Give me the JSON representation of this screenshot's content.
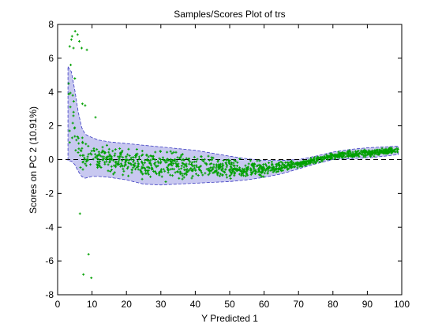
{
  "chart_data": {
    "type": "scatter",
    "title": "Samples/Scores Plot of trs",
    "xlabel": "Y Predicted 1",
    "ylabel": "Scores on PC 2 (10.91%)",
    "xlim": [
      0,
      100
    ],
    "ylim": [
      -8,
      8
    ],
    "xticks": [
      "0",
      "10",
      "20",
      "30",
      "40",
      "50",
      "60",
      "70",
      "80",
      "90",
      "100"
    ],
    "yticks": [
      "-8",
      "-6",
      "-4",
      "-2",
      "0",
      "2",
      "4",
      "6",
      "8"
    ],
    "grid": false,
    "zero_line": {
      "y": 0,
      "style": "dashed"
    },
    "colors": {
      "points": "#00a000",
      "band_fill": "#c8c8f0",
      "band_edge": "#3a3ac0",
      "zero_line": "#000000"
    },
    "confidence_band": {
      "x": [
        3,
        4,
        5,
        6,
        7,
        8,
        10,
        12,
        15,
        20,
        25,
        30,
        35,
        40,
        45,
        50,
        55,
        60,
        65,
        70,
        75,
        80,
        85,
        90,
        95,
        99
      ],
      "upper": [
        5.5,
        5.2,
        4.1,
        2.8,
        1.9,
        1.5,
        1.3,
        1.15,
        1.05,
        0.95,
        0.85,
        0.75,
        0.65,
        0.55,
        0.38,
        0.2,
        0.05,
        -0.05,
        -0.05,
        0.0,
        0.2,
        0.45,
        0.6,
        0.7,
        0.75,
        0.8
      ],
      "lower": [
        -0.05,
        -0.1,
        -0.3,
        -0.7,
        -1.0,
        -1.1,
        -1.0,
        -1.0,
        -1.05,
        -1.2,
        -1.45,
        -1.5,
        -1.45,
        -1.4,
        -1.35,
        -1.3,
        -1.2,
        -1.05,
        -0.85,
        -0.55,
        -0.25,
        0.0,
        0.05,
        0.1,
        0.2,
        0.3
      ]
    },
    "outlier_points": [
      [
        3.5,
        6.7
      ],
      [
        4.0,
        7.1
      ],
      [
        4.2,
        7.3
      ],
      [
        4.6,
        6.6
      ],
      [
        5.1,
        7.6
      ],
      [
        5.8,
        7.4
      ],
      [
        6.3,
        7.0
      ],
      [
        7.0,
        6.6
      ],
      [
        8.5,
        6.5
      ],
      [
        3.8,
        5.6
      ],
      [
        6.5,
        -3.2
      ],
      [
        7.2,
        3.3
      ],
      [
        8.0,
        3.2
      ],
      [
        9.0,
        -5.6
      ],
      [
        9.8,
        -7.0
      ],
      [
        7.5,
        -6.8
      ],
      [
        11.0,
        2.5
      ],
      [
        4.4,
        3.8
      ],
      [
        5.0,
        4.8
      ],
      [
        3.2,
        4.5
      ]
    ],
    "cluster_points_count": 1200
  }
}
